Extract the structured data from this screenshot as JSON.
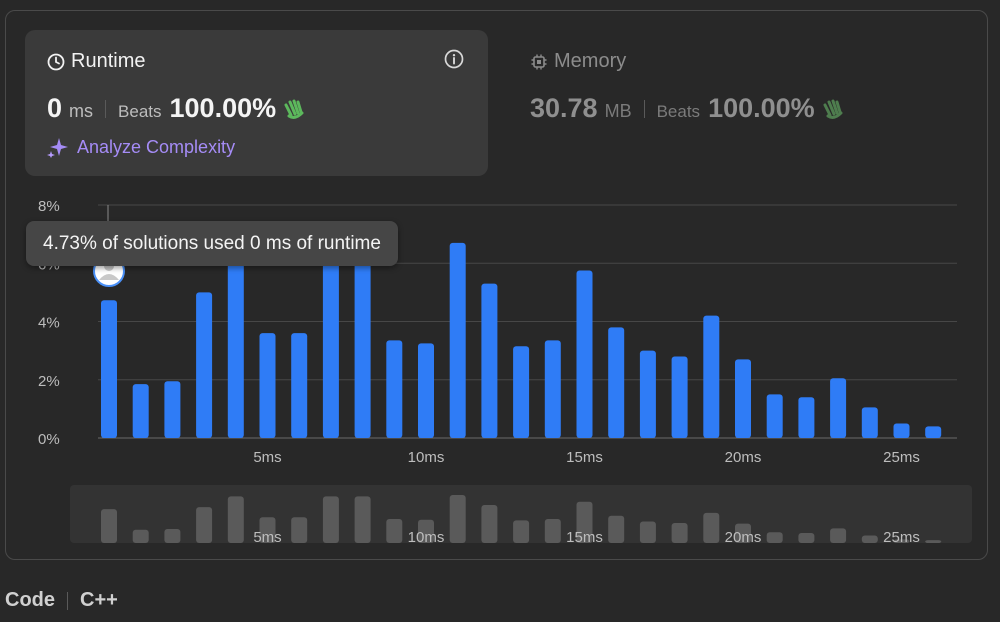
{
  "runtime": {
    "title": "Runtime",
    "value": "0",
    "unit": "ms",
    "beats_label": "Beats",
    "beats_value": "100.00%",
    "analyze_label": "Analyze Complexity"
  },
  "memory": {
    "title": "Memory",
    "value": "30.78",
    "unit": "MB",
    "beats_label": "Beats",
    "beats_value": "100.00%"
  },
  "tooltip": "4.73% of solutions used 0 ms of runtime",
  "footer": {
    "code_label": "Code",
    "language": "C++"
  },
  "colors": {
    "bar": "#2f7cf6",
    "overview_bar": "#5a5a5a",
    "accent": "#a58cf6",
    "icon_green": "#5cb85c"
  },
  "chart_data": {
    "type": "bar",
    "x": [
      0,
      1,
      2,
      3,
      4,
      5,
      6,
      7,
      8,
      9,
      10,
      11,
      12,
      13,
      14,
      15,
      16,
      17,
      18,
      19,
      20,
      21,
      22,
      23,
      24,
      25,
      26
    ],
    "values": [
      4.73,
      1.85,
      1.95,
      5.0,
      6.5,
      3.6,
      3.6,
      6.5,
      6.5,
      3.35,
      3.25,
      6.7,
      5.3,
      3.15,
      3.35,
      5.75,
      3.8,
      3.0,
      2.8,
      4.2,
      2.7,
      1.5,
      1.4,
      2.05,
      1.05,
      0.5,
      0.4
    ],
    "y_ticks": [
      "0%",
      "2%",
      "4%",
      "6%",
      "8%"
    ],
    "x_ticks": [
      {
        "x": 5,
        "label": "5ms"
      },
      {
        "x": 10,
        "label": "10ms"
      },
      {
        "x": 15,
        "label": "15ms"
      },
      {
        "x": 20,
        "label": "20ms"
      },
      {
        "x": 25,
        "label": "25ms"
      }
    ],
    "ylim": [
      0,
      8
    ],
    "grid": true,
    "highlight_index": 0
  }
}
